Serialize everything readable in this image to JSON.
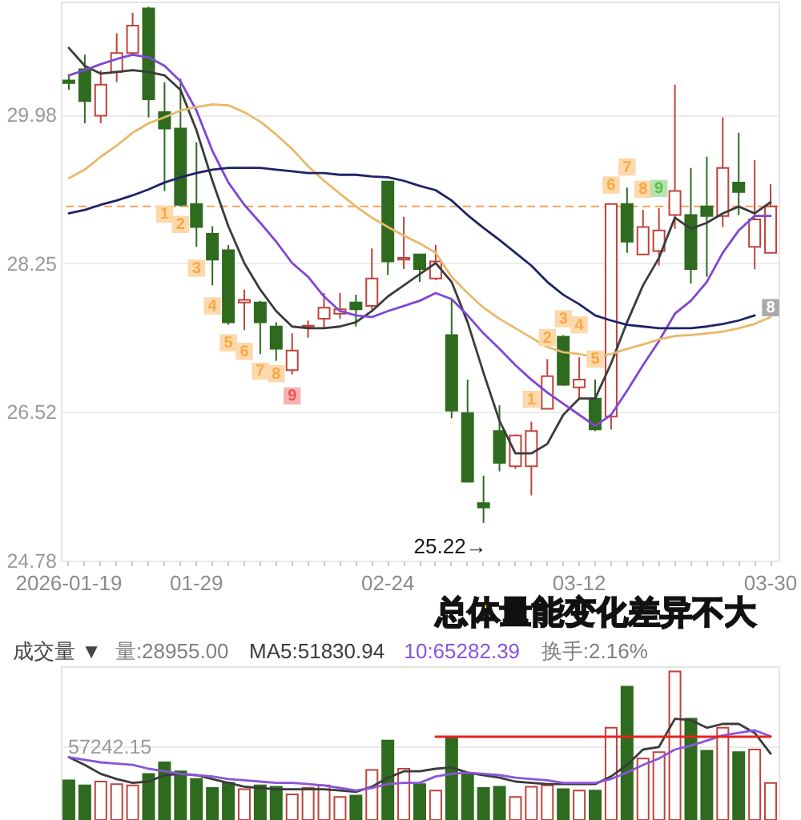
{
  "chart_data": [
    {
      "type": "candlestick",
      "categories": [
        "2026-01-19",
        null,
        null,
        null,
        null,
        null,
        null,
        null,
        "01-29",
        null,
        null,
        null,
        null,
        null,
        null,
        null,
        null,
        null,
        null,
        null,
        "02-24",
        null,
        null,
        null,
        null,
        null,
        null,
        null,
        null,
        null,
        null,
        null,
        "03-12",
        null,
        null,
        null,
        null,
        null,
        null,
        null,
        null,
        null,
        null,
        null,
        "03-30"
      ],
      "ohlc": [
        [
          30.38,
          30.44,
          30.27,
          30.35
        ],
        [
          30.51,
          30.68,
          29.88,
          30.14
        ],
        [
          29.97,
          30.5,
          29.88,
          30.33
        ],
        [
          30.48,
          30.93,
          30.36,
          30.7
        ],
        [
          30.7,
          31.17,
          30.68,
          31.02
        ],
        [
          31.22,
          31.24,
          29.95,
          30.16
        ],
        [
          30.01,
          30.36,
          29.09,
          29.82
        ],
        [
          29.82,
          30.4,
          28.91,
          28.93
        ],
        [
          28.94,
          29.66,
          28.44,
          28.67
        ],
        [
          28.59,
          28.68,
          27.99,
          28.29
        ],
        [
          28.4,
          28.46,
          27.53,
          27.56
        ],
        [
          27.79,
          27.94,
          27.47,
          27.82
        ],
        [
          27.79,
          27.81,
          27.19,
          27.56
        ],
        [
          27.51,
          27.56,
          27.11,
          27.25
        ],
        [
          27.0,
          27.43,
          26.95,
          27.23
        ],
        [
          27.51,
          27.58,
          27.38,
          27.52
        ],
        [
          27.6,
          27.9,
          27.49,
          27.73
        ],
        [
          27.66,
          27.9,
          27.6,
          27.71
        ],
        [
          27.79,
          27.88,
          27.51,
          27.71
        ],
        [
          27.75,
          28.42,
          27.71,
          28.07
        ],
        [
          29.2,
          29.2,
          28.11,
          28.27
        ],
        [
          28.29,
          28.79,
          28.18,
          28.31
        ],
        [
          28.35,
          28.36,
          28.03,
          28.18
        ],
        [
          28.07,
          28.46,
          28.05,
          28.27
        ],
        [
          27.41,
          27.82,
          26.44,
          26.53
        ],
        [
          26.5,
          26.89,
          25.7,
          25.7
        ],
        [
          25.45,
          25.77,
          25.22,
          25.4
        ],
        [
          26.29,
          26.59,
          25.82,
          25.92
        ],
        [
          25.88,
          26.25,
          25.85,
          26.24
        ],
        [
          25.88,
          26.4,
          25.54,
          26.29
        ],
        [
          26.55,
          27.13,
          26.55,
          26.93
        ],
        [
          27.39,
          27.41,
          26.82,
          26.83
        ],
        [
          26.8,
          27.15,
          26.67,
          26.89
        ],
        [
          26.67,
          26.89,
          26.29,
          26.31
        ],
        [
          26.46,
          28.94,
          26.31,
          28.94
        ],
        [
          28.94,
          29.13,
          28.37,
          28.5
        ],
        [
          28.35,
          28.87,
          28.35,
          28.67
        ],
        [
          28.39,
          28.89,
          28.22,
          28.63
        ],
        [
          28.81,
          30.33,
          28.65,
          29.09
        ],
        [
          28.81,
          29.36,
          28.01,
          28.18
        ],
        [
          28.91,
          29.49,
          28.09,
          28.8
        ],
        [
          28.8,
          29.95,
          28.67,
          29.36
        ],
        [
          29.19,
          29.77,
          28.81,
          29.08
        ],
        [
          28.44,
          29.45,
          28.18,
          28.76
        ],
        [
          28.37,
          29.17,
          28.37,
          28.91
        ]
      ],
      "colors": [
        "#2e6b1f",
        "#2e6b1f",
        "#c0433b",
        "#c0433b",
        "#c0433b",
        "#2e6b1f",
        "#2e6b1f",
        "#2e6b1f",
        "#2e6b1f",
        "#2e6b1f",
        "#2e6b1f",
        "#c0433b",
        "#2e6b1f",
        "#2e6b1f",
        "#c0433b",
        "#c0433b",
        "#c0433b",
        "#c0433b",
        "#2e6b1f",
        "#c0433b",
        "#2e6b1f",
        "#c0433b",
        "#2e6b1f",
        "#c0433b",
        "#2e6b1f",
        "#2e6b1f",
        "#2e6b1f",
        "#2e6b1f",
        "#c0433b",
        "#c0433b",
        "#c0433b",
        "#2e6b1f",
        "#c0433b",
        "#2e6b1f",
        "#c0433b",
        "#2e6b1f",
        "#c0433b",
        "#c0433b",
        "#c0433b",
        "#2e6b1f",
        "#2e6b1f",
        "#c0433b",
        "#2e6b1f",
        "#c0433b",
        "#c0433b"
      ],
      "series": [
        {
          "type": "line",
          "color": "#3b3b3b",
          "values": [
            30.76,
            30.55,
            30.46,
            30.48,
            30.5,
            30.48,
            30.44,
            30.27,
            29.8,
            29.21,
            28.68,
            28.25,
            27.94,
            27.69,
            27.51,
            27.49,
            27.49,
            27.51,
            27.56,
            27.69,
            27.86,
            27.99,
            28.12,
            28.25,
            28.03,
            27.56,
            26.97,
            26.41,
            26.03,
            26.03,
            26.14,
            26.48,
            26.67,
            26.67,
            27.08,
            27.56,
            27.99,
            28.31,
            28.78,
            28.65,
            28.72,
            28.83,
            28.91,
            28.83,
            28.96
          ]
        },
        {
          "type": "line",
          "color": "#8046d6",
          "values": [
            30.44,
            30.5,
            30.57,
            30.63,
            30.68,
            30.65,
            30.55,
            30.37,
            30.03,
            29.56,
            29.19,
            28.93,
            28.72,
            28.5,
            28.25,
            28.09,
            27.86,
            27.69,
            27.64,
            27.62,
            27.69,
            27.75,
            27.81,
            27.9,
            27.83,
            27.64,
            27.43,
            27.25,
            27.06,
            26.89,
            26.74,
            26.61,
            26.48,
            26.35,
            26.48,
            26.76,
            27.06,
            27.34,
            27.66,
            27.81,
            28.03,
            28.37,
            28.63,
            28.8,
            28.8
          ]
        },
        {
          "type": "line",
          "color": "#e8b96a",
          "values": [
            29.24,
            29.34,
            29.49,
            29.62,
            29.77,
            29.88,
            29.95,
            30.03,
            30.07,
            30.1,
            30.09,
            30.01,
            29.9,
            29.75,
            29.58,
            29.38,
            29.21,
            29.06,
            28.91,
            28.78,
            28.67,
            28.57,
            28.48,
            28.37,
            28.09,
            27.9,
            27.73,
            27.6,
            27.49,
            27.38,
            27.27,
            27.21,
            27.19,
            27.15,
            27.19,
            27.25,
            27.3,
            27.36,
            27.4,
            27.41,
            27.43,
            27.45,
            27.49,
            27.54,
            27.62
          ]
        },
        {
          "type": "line",
          "color": "#1e2466",
          "values": [
            28.83,
            28.87,
            28.93,
            28.98,
            29.04,
            29.11,
            29.19,
            29.25,
            29.3,
            29.34,
            29.36,
            29.36,
            29.36,
            29.34,
            29.32,
            29.3,
            29.3,
            29.28,
            29.28,
            29.26,
            29.25,
            29.21,
            29.15,
            29.1,
            28.98,
            28.81,
            28.66,
            28.52,
            28.37,
            28.22,
            28.03,
            27.88,
            27.77,
            27.64,
            27.58,
            27.53,
            27.51,
            27.49,
            27.49,
            27.49,
            27.51,
            27.54,
            27.58,
            27.64,
            null
          ]
        },
        {
          "type": "scatter",
          "name": "1",
          "marker": "square",
          "color": "#fcd8ab",
          "values": [
            null,
            null,
            null,
            null,
            null,
            null,
            28.82,
            null,
            null,
            null,
            null,
            null,
            null,
            null,
            null,
            null,
            null,
            null,
            null,
            null,
            null,
            null,
            null,
            null,
            null,
            null,
            null,
            null,
            null,
            26.66,
            null,
            null,
            null,
            null,
            null,
            null,
            null,
            null,
            null,
            null,
            null,
            null,
            null,
            null,
            null
          ]
        },
        {
          "type": "scatter",
          "name": "2",
          "marker": "square",
          "color": "#fcd8ab",
          "values": [
            null,
            null,
            null,
            null,
            null,
            null,
            null,
            28.7,
            null,
            null,
            null,
            null,
            null,
            null,
            null,
            null,
            null,
            null,
            null,
            null,
            null,
            null,
            null,
            null,
            null,
            null,
            null,
            null,
            null,
            null,
            27.38,
            null,
            null,
            null,
            null,
            null,
            null,
            null,
            null,
            null,
            null,
            null,
            null,
            null,
            null
          ]
        },
        {
          "type": "scatter",
          "name": "3",
          "marker": "square",
          "color": "#fcd8ab",
          "values": [
            null,
            null,
            null,
            null,
            null,
            null,
            null,
            null,
            28.19,
            null,
            null,
            null,
            null,
            null,
            null,
            null,
            null,
            null,
            null,
            null,
            null,
            null,
            null,
            null,
            null,
            null,
            null,
            null,
            null,
            null,
            null,
            27.6,
            null,
            null,
            null,
            null,
            null,
            null,
            null,
            null,
            null,
            null,
            null,
            null,
            null
          ]
        },
        {
          "type": "scatter",
          "name": "4",
          "marker": "square",
          "color": "#fcd8ab",
          "values": [
            null,
            null,
            null,
            null,
            null,
            null,
            null,
            null,
            null,
            27.75,
            null,
            null,
            null,
            null,
            null,
            null,
            null,
            null,
            null,
            null,
            null,
            null,
            null,
            null,
            null,
            null,
            null,
            null,
            null,
            null,
            null,
            null,
            27.53,
            null,
            null,
            null,
            null,
            null,
            null,
            null,
            null,
            null,
            null,
            null,
            null
          ]
        },
        {
          "type": "scatter",
          "name": "5",
          "marker": "square",
          "color": "#fcd8ab",
          "values": [
            null,
            null,
            null,
            null,
            null,
            null,
            null,
            null,
            null,
            null,
            27.32,
            null,
            null,
            null,
            null,
            null,
            null,
            null,
            null,
            null,
            null,
            null,
            null,
            null,
            null,
            null,
            null,
            null,
            null,
            null,
            null,
            null,
            null,
            27.13,
            null,
            null,
            null,
            null,
            null,
            null,
            null,
            null,
            null,
            null,
            null
          ]
        },
        {
          "type": "scatter",
          "name": "6",
          "marker": "square",
          "color": "#fcd8ab",
          "values": [
            null,
            null,
            null,
            null,
            null,
            null,
            null,
            null,
            null,
            null,
            null,
            27.22,
            null,
            null,
            null,
            null,
            null,
            null,
            null,
            null,
            null,
            null,
            null,
            null,
            null,
            null,
            null,
            null,
            null,
            null,
            null,
            null,
            null,
            null,
            29.16,
            null,
            null,
            null,
            null,
            null,
            null,
            null,
            null,
            null,
            null
          ]
        },
        {
          "type": "scatter",
          "name": "7",
          "marker": "square",
          "color": "#fcd8ab",
          "values": [
            null,
            null,
            null,
            null,
            null,
            null,
            null,
            null,
            null,
            null,
            null,
            null,
            26.99,
            null,
            null,
            null,
            null,
            null,
            null,
            null,
            null,
            null,
            null,
            null,
            null,
            null,
            null,
            null,
            null,
            null,
            null,
            null,
            null,
            null,
            null,
            29.37,
            null,
            null,
            null,
            null,
            null,
            null,
            null,
            null,
            null
          ]
        },
        {
          "type": "scatter",
          "name": "8",
          "marker": "square",
          "values": [
            null,
            null,
            null,
            null,
            null,
            null,
            null,
            null,
            null,
            null,
            null,
            null,
            null,
            26.96,
            null,
            null,
            null,
            null,
            null,
            null,
            null,
            null,
            null,
            null,
            null,
            null,
            null,
            null,
            null,
            null,
            null,
            null,
            null,
            null,
            null,
            null,
            29.11,
            null,
            null,
            null,
            null,
            null,
            null,
            null,
            27.73
          ],
          "colors": [
            null,
            null,
            null,
            null,
            null,
            null,
            null,
            null,
            null,
            null,
            null,
            null,
            null,
            "#fcd8ab",
            null,
            null,
            null,
            null,
            null,
            null,
            null,
            null,
            null,
            null,
            null,
            null,
            null,
            null,
            null,
            null,
            null,
            null,
            null,
            null,
            null,
            null,
            "#fcd8ab",
            null,
            null,
            null,
            null,
            null,
            null,
            null,
            "#a9a9a9"
          ]
        },
        {
          "type": "scatter",
          "name": "9",
          "marker": "square",
          "values": [
            null,
            null,
            null,
            null,
            null,
            null,
            null,
            null,
            null,
            null,
            null,
            null,
            null,
            null,
            26.7,
            null,
            null,
            null,
            null,
            null,
            null,
            null,
            null,
            null,
            null,
            null,
            null,
            null,
            null,
            null,
            null,
            null,
            null,
            null,
            null,
            null,
            null,
            29.12,
            null,
            null,
            null,
            null,
            null,
            null,
            null
          ],
          "colors": [
            null,
            null,
            null,
            null,
            null,
            null,
            null,
            null,
            null,
            null,
            null,
            null,
            null,
            null,
            "#f6b3b3",
            null,
            null,
            null,
            null,
            null,
            null,
            null,
            null,
            null,
            null,
            null,
            null,
            null,
            null,
            null,
            null,
            null,
            null,
            null,
            null,
            null,
            null,
            "#b5e2ae",
            null,
            null,
            null,
            null,
            null,
            null,
            null
          ]
        }
      ],
      "ylim": [
        24.78,
        31.3
      ],
      "yticks": [
        29.98,
        28.25,
        26.52,
        24.78
      ],
      "grid": "y",
      "ref_lines": [
        {
          "axis": "y",
          "value": 28.91,
          "color": "#f2a35e",
          "line_style": "dashed"
        }
      ],
      "annotations": [
        "25.22→"
      ]
    },
    {
      "type": "bar",
      "title": "成交量 ▼",
      "subtitle": "总体量能变化差异不大",
      "categories": [
        null,
        null,
        null,
        null,
        null,
        null,
        null,
        null,
        null,
        null,
        null,
        null,
        null,
        null,
        null,
        null,
        null,
        null,
        null,
        null,
        null,
        null,
        null,
        null,
        null,
        null,
        null,
        null,
        null,
        null,
        null,
        null,
        null,
        null,
        null,
        null,
        null,
        null,
        null,
        null,
        null,
        null,
        null,
        null,
        null
      ],
      "series": [
        {
          "type": "bar",
          "colors": [
            "#2e6b1f",
            "#2e6b1f",
            "#c0433b",
            "#c0433b",
            "#c0433b",
            "#2e6b1f",
            "#2e6b1f",
            "#2e6b1f",
            "#2e6b1f",
            "#2e6b1f",
            "#2e6b1f",
            "#c0433b",
            "#2e6b1f",
            "#2e6b1f",
            "#c0433b",
            "#c0433b",
            "#c0433b",
            "#c0433b",
            "#2e6b1f",
            "#c0433b",
            "#2e6b1f",
            "#c0433b",
            "#2e6b1f",
            "#c0433b",
            "#2e6b1f",
            "#2e6b1f",
            "#2e6b1f",
            "#2e6b1f",
            "#c0433b",
            "#c0433b",
            "#c0433b",
            "#2e6b1f",
            "#c0433b",
            "#2e6b1f",
            "#c0433b",
            "#2e6b1f",
            "#c0433b",
            "#c0433b",
            "#c0433b",
            "#2e6b1f",
            "#2e6b1f",
            "#c0433b",
            "#2e6b1f",
            "#c0433b",
            "#c0433b"
          ],
          "values": [
            31000,
            27000,
            30000,
            28000,
            27000,
            36000,
            45000,
            38000,
            32000,
            25000,
            29000,
            24000,
            27000,
            26000,
            20000,
            25000,
            27000,
            18000,
            19000,
            39000,
            62000,
            40000,
            28000,
            23000,
            64000,
            36000,
            25000,
            26000,
            18000,
            26000,
            27000,
            24000,
            23000,
            23000,
            72000,
            104000,
            48000,
            53000,
            116000,
            79000,
            54000,
            72000,
            53000,
            55000,
            28955
          ]
        },
        {
          "type": "line",
          "name": "MA5:51830.94",
          "color": "#3b3b3b",
          "values": [
            49000,
            43000,
            36000,
            32000,
            29000,
            30000,
            35000,
            36000,
            35000,
            32000,
            29000,
            26000,
            25000,
            24000,
            24000,
            24000,
            24000,
            23000,
            22000,
            26000,
            33000,
            38000,
            38000,
            40000,
            41000,
            37000,
            35000,
            33000,
            30000,
            29000,
            28000,
            28000,
            28000,
            28000,
            34000,
            43000,
            55000,
            57000,
            79000,
            78000,
            72000,
            75000,
            75000,
            68000,
            51830.94
          ]
        },
        {
          "type": "line",
          "name": "10:65282.39",
          "color": "#8a55db",
          "values": [
            49000,
            47000,
            45000,
            44000,
            43000,
            40000,
            38000,
            36000,
            35000,
            34000,
            32000,
            31000,
            30000,
            29000,
            29000,
            28000,
            27000,
            25000,
            23000,
            25000,
            28000,
            29000,
            29000,
            34000,
            36000,
            37000,
            36000,
            35000,
            33000,
            32000,
            31000,
            29000,
            29000,
            29000,
            32000,
            37000,
            43000,
            48000,
            55000,
            58000,
            62000,
            66000,
            68000,
            70000,
            65282.39
          ]
        },
        {
          "type": "line",
          "color": "#e8231c",
          "values": [
            null,
            null,
            null,
            null,
            null,
            null,
            null,
            null,
            null,
            null,
            null,
            null,
            null,
            null,
            null,
            null,
            null,
            null,
            null,
            null,
            null,
            null,
            null,
            65000,
            65000,
            65000,
            65000,
            65000,
            65000,
            65000,
            65000,
            65000,
            65000,
            65000,
            65000,
            65000,
            65000,
            65000,
            65000,
            65000,
            65000,
            65000,
            65000,
            65000,
            65000
          ]
        }
      ],
      "ylim": [
        0,
        120000
      ],
      "yticks": [
        57242.15
      ],
      "grid": "y",
      "tick_labels": "y",
      "legend": "top left",
      "annotations": [
        "量:28955.00",
        "换手:2.16%"
      ]
    }
  ]
}
